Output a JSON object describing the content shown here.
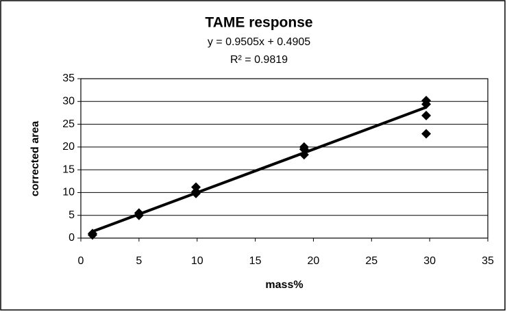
{
  "chart_data": {
    "type": "scatter",
    "title": "TAME response",
    "equation": "y = 0.9505x + 0.4905",
    "r_squared": "R² = 0.9819",
    "x_label": "mass%",
    "y_label": "corrected area",
    "series": [
      {
        "color": "#000000",
        "x": [
          1,
          1,
          5,
          5,
          9.9,
          9.9,
          9.9,
          19.2,
          19.2,
          19.2,
          29.7,
          29.7,
          29.7,
          29.7
        ],
        "values": [
          1.0,
          0.7,
          5.5,
          5.0,
          11.2,
          10.2,
          9.8,
          20.0,
          19.5,
          18.3,
          30.2,
          29.4,
          26.9,
          22.9
        ]
      }
    ],
    "trendline": {
      "color": "#000000",
      "x": [
        1,
        29.7
      ],
      "values": [
        1.44,
        28.72
      ]
    },
    "xlim": [
      0,
      35
    ],
    "xticks": [
      0,
      5,
      10,
      15,
      20,
      25,
      30,
      35
    ],
    "ylim": [
      0,
      35
    ],
    "yticks": [
      0,
      5,
      10,
      15,
      20,
      25,
      30,
      35
    ],
    "grid": true
  }
}
